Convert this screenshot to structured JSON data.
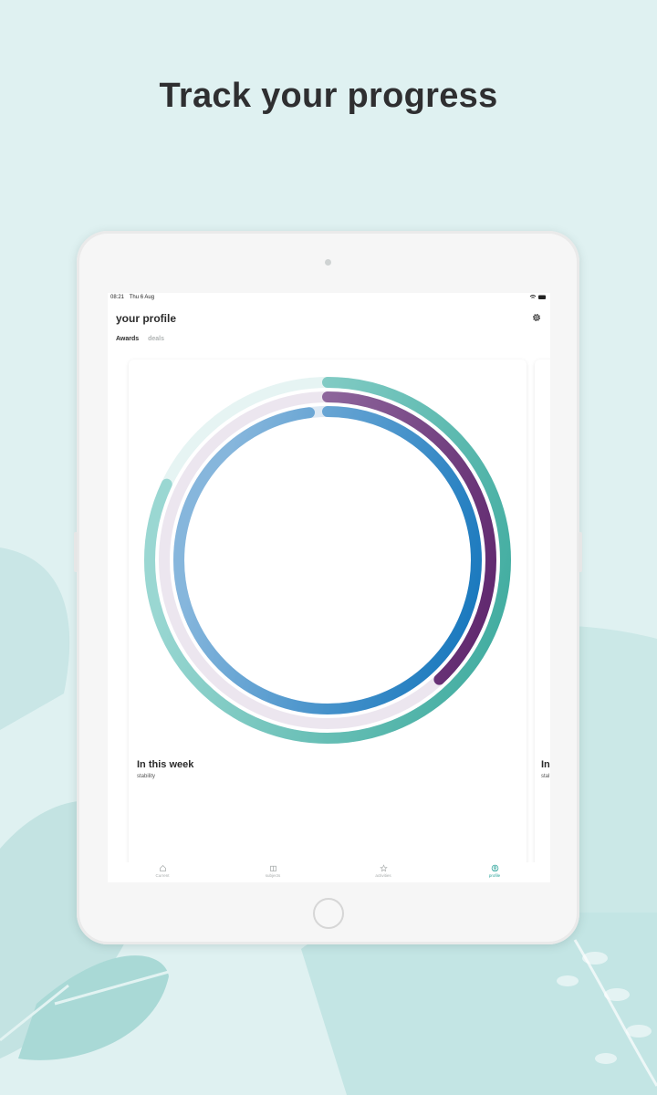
{
  "headline": "Track your progress",
  "status_bar": {
    "time": "08:21",
    "date": "Thu 6 Aug"
  },
  "profile": {
    "title": "your profile"
  },
  "tabs": [
    {
      "label": "Awards",
      "active": true
    },
    {
      "label": "deals",
      "active": false
    }
  ],
  "card": {
    "title": "In this week",
    "subtitle": "stability",
    "rings": [
      {
        "name": "outer",
        "progress": 0.82,
        "colors": [
          "#3aa99c",
          "#9ad7d2"
        ],
        "track": "#e6f4f3"
      },
      {
        "name": "middle",
        "progress": 0.38,
        "colors": [
          "#5a1f68",
          "#a07fae"
        ],
        "track": "#ece6ef"
      },
      {
        "name": "inner",
        "progress": 0.98,
        "colors": [
          "#0f73bb",
          "#86b6dc"
        ],
        "track": "#dde9f4"
      }
    ]
  },
  "next_card": {
    "title": "In",
    "subtitle": "stal"
  },
  "tab_bar": [
    {
      "label": "Current",
      "icon": "home-icon",
      "active": false
    },
    {
      "label": "subjects",
      "icon": "book-icon",
      "active": false
    },
    {
      "label": "activities",
      "icon": "star-icon",
      "active": false
    },
    {
      "label": "profile",
      "icon": "profile-icon",
      "active": true
    }
  ],
  "colors": {
    "background": "#dff1f1",
    "accent": "#2aa39a",
    "text": "#2f2f31"
  }
}
